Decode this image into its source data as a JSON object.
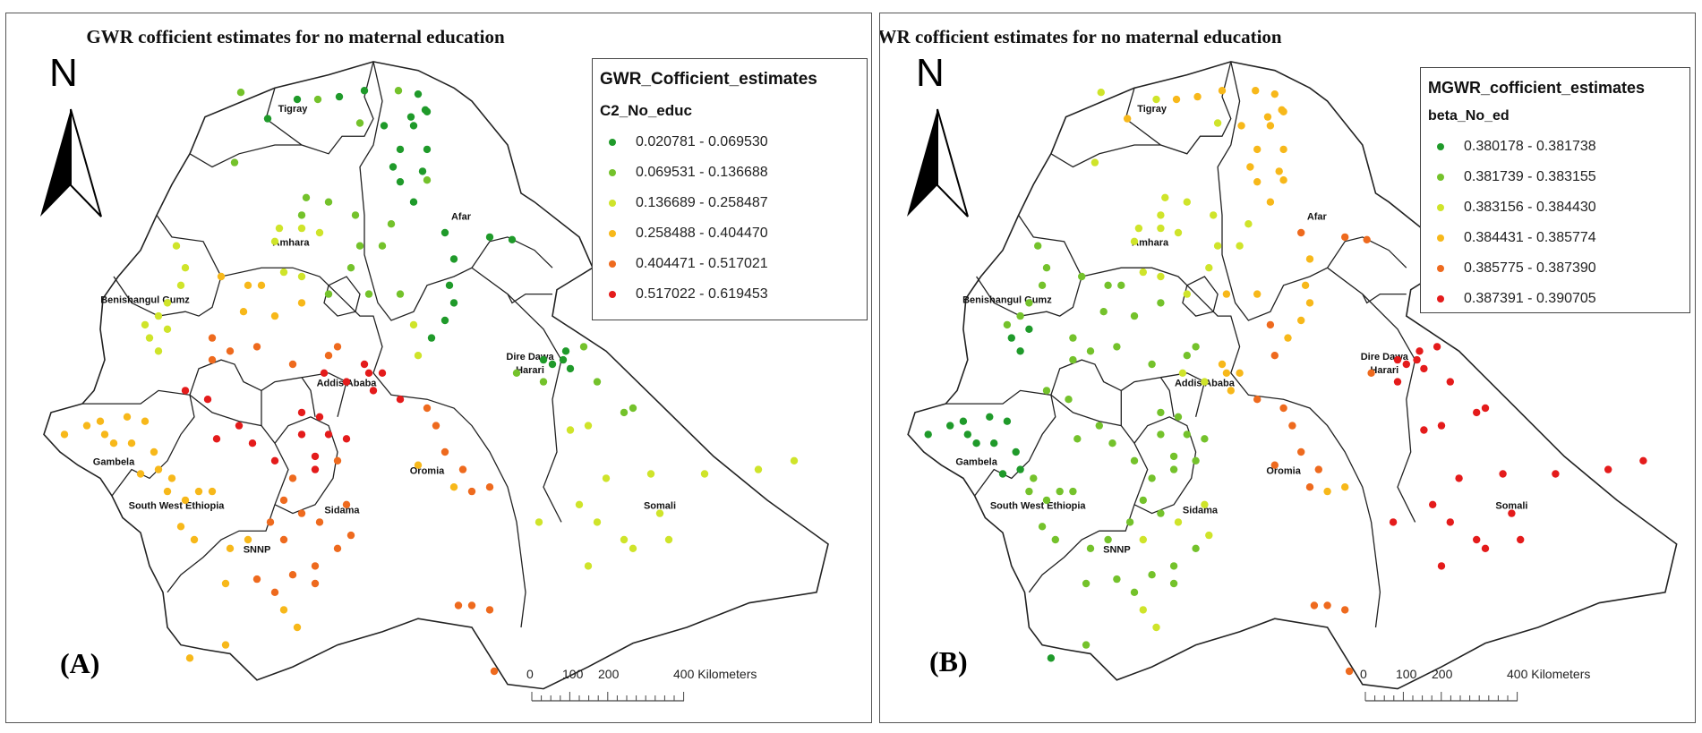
{
  "panels": {
    "a": {
      "title": "GWR cofficient estimates for no maternal education",
      "label": "(A)",
      "north": "N",
      "legend_title": "GWR_Cofficient_estimates",
      "legend_field": "C2_No_educ",
      "classes": [
        {
          "range": "0.020781 - 0.069530",
          "color": "#1f9a2a"
        },
        {
          "range": "0.069531 - 0.136688",
          "color": "#74c22b"
        },
        {
          "range": "0.136689 - 0.258487",
          "color": "#cfe42a"
        },
        {
          "range": "0.258488 - 0.404470",
          "color": "#f7b81a"
        },
        {
          "range": "0.404471 - 0.517021",
          "color": "#ee6a1e"
        },
        {
          "range": "0.517022 - 0.619453",
          "color": "#e41b1b"
        }
      ],
      "scale": {
        "ticks": [
          "0",
          "100",
          "200"
        ],
        "end": "400 Kilometers"
      }
    },
    "b": {
      "title": "MGWR cofficient estimates for no maternal education",
      "label": "(B)",
      "north": "N",
      "legend_title": "MGWR_cofficient_estimates",
      "legend_field": "beta_No_ed",
      "classes": [
        {
          "range": "0.380178 - 0.381738",
          "color": "#1f9a2a"
        },
        {
          "range": "0.381739 - 0.383155",
          "color": "#74c22b"
        },
        {
          "range": "0.383156 - 0.384430",
          "color": "#cfe42a"
        },
        {
          "range": "0.384431 - 0.385774",
          "color": "#f7b81a"
        },
        {
          "range": "0.385775 - 0.387390",
          "color": "#ee6a1e"
        },
        {
          "range": "0.387391 - 0.390705",
          "color": "#e41b1b"
        }
      ],
      "scale": {
        "ticks": [
          "0",
          "100",
          "200"
        ],
        "end": "400 Kilometers"
      }
    }
  },
  "regions": [
    "Tigray",
    "Afar",
    "Amhara",
    "Benishangul Gumz",
    "Dire Dawa",
    "Harari",
    "Addis Ababa",
    "Gambela",
    "Oromia",
    "Somali",
    "South West Ethiopia",
    "Sidama",
    "SNNP"
  ]
}
